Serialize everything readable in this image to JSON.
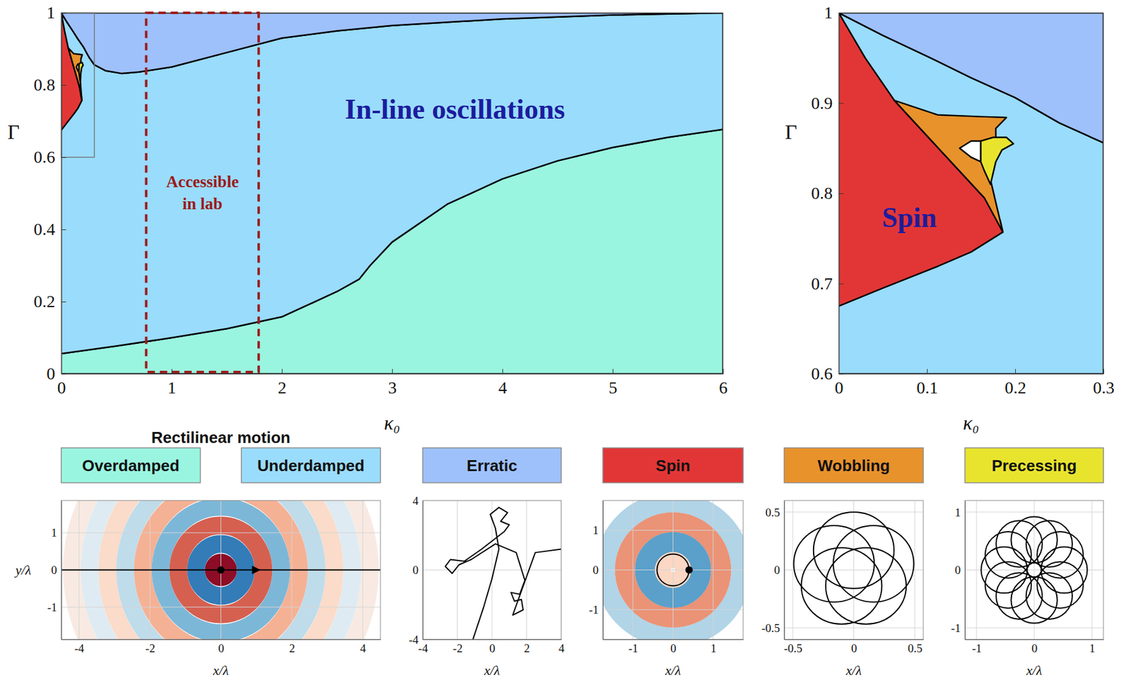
{
  "chart_data": [
    {
      "type": "regime_map",
      "x_label": "κ₀",
      "y_label": "Γ",
      "xlim": [
        0,
        6
      ],
      "ylim": [
        0,
        1
      ],
      "xticks": [
        0,
        1,
        2,
        3,
        4,
        5,
        6
      ],
      "yticks": [
        0,
        0.2,
        0.4,
        0.6,
        0.8,
        1
      ],
      "legend": "bottom",
      "series": [
        {
          "name": "Overdamped",
          "color": "#9af5e0",
          "x": [
            0,
            0.5,
            1,
            1.5,
            2,
            2.5,
            2.7,
            2.8,
            3,
            3.5,
            4,
            4.5,
            5,
            5.5,
            6,
            6,
            0
          ],
          "values": [
            0.056,
            0.077,
            0.1,
            0.125,
            0.158,
            0.228,
            0.262,
            0.3,
            0.365,
            0.47,
            0.54,
            0.59,
            0.627,
            0.655,
            0.677,
            0,
            0
          ]
        },
        {
          "name": "Underdamped",
          "color": "#9adcfc",
          "x": [
            0,
            0.5,
            1,
            1.5,
            2,
            2.5,
            2.7,
            2.8,
            3,
            3.5,
            4,
            4.5,
            5,
            5.5,
            6,
            6,
            5,
            4,
            3,
            2.5,
            2,
            1.5,
            1,
            0.7,
            0.55,
            0.4,
            0.3,
            0.25,
            0.2,
            0.15,
            0.1,
            0.05,
            0
          ],
          "values": [
            0.056,
            0.077,
            0.1,
            0.125,
            0.158,
            0.228,
            0.262,
            0.3,
            0.365,
            0.47,
            0.54,
            0.59,
            0.627,
            0.655,
            0.677,
            1,
            0.994,
            0.983,
            0.965,
            0.95,
            0.93,
            0.89,
            0.85,
            0.836,
            0.832,
            0.84,
            0.856,
            0.878,
            0.906,
            0.928,
            0.952,
            0.975,
            1
          ]
        },
        {
          "name": "Erratic",
          "color": "#9ec1fc",
          "x": [
            0,
            0.05,
            0.1,
            0.15,
            0.2,
            0.25,
            0.3,
            0.4,
            0.55,
            0.7,
            1,
            1.5,
            2,
            2.5,
            3,
            4,
            5,
            6
          ],
          "values": [
            1,
            0.975,
            0.952,
            0.928,
            0.906,
            0.878,
            0.856,
            0.84,
            0.832,
            0.836,
            0.85,
            0.89,
            0.93,
            0.95,
            0.965,
            0.983,
            0.994,
            1
          ]
        },
        {
          "name": "Spin",
          "color": "#e23636",
          "x": [
            0,
            0.03,
            0.063,
            0.112,
            0.165,
            0.183,
            0.186,
            0.15,
            0.112,
            0.05,
            0
          ],
          "values": [
            1,
            0.95,
            0.903,
            0.851,
            0.795,
            0.77,
            0.757,
            0.735,
            0.719,
            0.695,
            0.675
          ]
        },
        {
          "name": "Wobbling",
          "color": "#e8922c",
          "x": [
            0.063,
            0.112,
            0.161,
            0.19,
            0.178,
            0.178,
            0.172,
            0.178,
            0.186,
            0.165,
            0.112
          ],
          "values": [
            0.903,
            0.887,
            0.885,
            0.884,
            0.872,
            0.84,
            0.815,
            0.79,
            0.757,
            0.795,
            0.851
          ]
        },
        {
          "color": "#ffffff",
          "x": [
            0.137,
            0.15,
            0.161,
            0.161,
            0.15
          ],
          "values": [
            0.85,
            0.858,
            0.858,
            0.835,
            0.84
          ]
        },
        {
          "name": "Precessing",
          "color": "#e8e42e",
          "x": [
            0.161,
            0.175,
            0.19,
            0.198,
            0.185,
            0.178,
            0.172,
            0.165,
            0.161
          ],
          "values": [
            0.858,
            0.862,
            0.862,
            0.855,
            0.848,
            0.835,
            0.81,
            0.825,
            0.835
          ]
        }
      ],
      "boxes": [
        {
          "x": [
            0.77,
            1.79
          ],
          "y": [
            0.005,
            1
          ],
          "line_style": "dashed",
          "color": "#9b1c1c",
          "text": [
            "Accessible",
            "in lab"
          ]
        },
        {
          "x": [
            0,
            0.3
          ],
          "y": [
            0.6,
            1
          ],
          "line_style": "solid",
          "color": "#777777"
        }
      ],
      "annotations": [
        {
          "text": "In-line oscillations",
          "x": 3.57,
          "y": 0.733,
          "color": "#1c1c9e"
        }
      ]
    },
    {
      "type": "regime_map",
      "x_label": "κ₀",
      "y_label": "Γ",
      "xlim": [
        0,
        0.3
      ],
      "ylim": [
        0.6,
        1
      ],
      "xticks": [
        0,
        0.1,
        0.2,
        0.3
      ],
      "yticks": [
        0.6,
        0.7,
        0.8,
        0.9,
        1
      ],
      "series": [
        {
          "color": "#9adcfc",
          "x": [
            0,
            0.3,
            0.3,
            0.25,
            0.2,
            0.15,
            0.1,
            0.05,
            0
          ],
          "values": [
            0.6,
            0.6,
            0.856,
            0.878,
            0.906,
            0.928,
            0.952,
            0.975,
            1
          ]
        },
        {
          "color": "#9ec1fc",
          "x": [
            0,
            0.05,
            0.1,
            0.15,
            0.2,
            0.25,
            0.3,
            0.3
          ],
          "values": [
            1,
            0.975,
            0.952,
            0.928,
            0.906,
            0.878,
            0.856,
            1
          ]
        },
        {
          "color": "#e23636",
          "x": [
            0,
            0.03,
            0.063,
            0.112,
            0.165,
            0.183,
            0.186,
            0.15,
            0.112,
            0.05,
            0
          ],
          "values": [
            1,
            0.95,
            0.903,
            0.851,
            0.795,
            0.77,
            0.757,
            0.735,
            0.719,
            0.695,
            0.675
          ]
        },
        {
          "color": "#e8922c",
          "x": [
            0.063,
            0.112,
            0.161,
            0.19,
            0.178,
            0.178,
            0.172,
            0.178,
            0.186,
            0.165,
            0.112
          ],
          "values": [
            0.903,
            0.887,
            0.885,
            0.884,
            0.872,
            0.84,
            0.815,
            0.79,
            0.757,
            0.795,
            0.851
          ]
        },
        {
          "color": "#ffffff",
          "x": [
            0.137,
            0.15,
            0.161,
            0.161,
            0.15
          ],
          "values": [
            0.85,
            0.858,
            0.858,
            0.835,
            0.84
          ]
        },
        {
          "color": "#e8e42e",
          "x": [
            0.161,
            0.175,
            0.19,
            0.198,
            0.185,
            0.178,
            0.172,
            0.165,
            0.161
          ],
          "values": [
            0.858,
            0.862,
            0.862,
            0.855,
            0.848,
            0.835,
            0.81,
            0.825,
            0.835
          ]
        }
      ],
      "annotations": [
        {
          "text": "Spin",
          "x": 0.08,
          "y": 0.773,
          "color": "#1c1c9e"
        }
      ]
    },
    {
      "type": "trajectory",
      "title": "Rectilinear motion",
      "x_label": "x/λ",
      "y_label": "y/λ",
      "xlim": [
        -4.5,
        4.5
      ],
      "ylim": [
        -1.87,
        1.87
      ],
      "xticks": [
        -4,
        -2,
        0,
        2,
        4
      ],
      "yticks": [
        -1,
        0,
        1
      ],
      "grid": true,
      "field": {
        "cx": 0,
        "cy": 0,
        "r": [
          0.2,
          0.7,
          1.2,
          1.7,
          2.2,
          2.7,
          3.2,
          3.7,
          4.2
        ],
        "amplitude": [
          0.9,
          -0.7,
          0.6,
          -0.45,
          0.35,
          -0.25,
          0.18,
          -0.12,
          0.08
        ]
      },
      "series": [
        {
          "color": "#000000",
          "marker": "arrow",
          "x": [
            -4.5,
            1,
            4.5
          ],
          "values": [
            0,
            0,
            0
          ]
        }
      ],
      "particle": [
        0,
        0
      ]
    },
    {
      "type": "trajectory",
      "x_label": "x/λ",
      "xlim": [
        -4,
        4
      ],
      "ylim": [
        -4,
        4
      ],
      "xticks": [
        -4,
        -2,
        0,
        2,
        4
      ],
      "yticks": [
        -4,
        0,
        4
      ],
      "grid": true,
      "series": [
        {
          "color": "#000000",
          "x": [
            -1.1,
            -0.5,
            0,
            0.4,
            0.2,
            -0.1,
            0.4,
            0.9,
            0.5,
            1.0,
            0.7,
            -0.6,
            -1.6,
            -2.4,
            -2.7,
            -2.3,
            -1.9,
            -1.2,
            0.2,
            1.4,
            1.9,
            1.6,
            1.1,
            1.3,
            1.7,
            1.8,
            1.2,
            2.5,
            4
          ],
          "values": [
            -4,
            -2.2,
            -0.5,
            1.2,
            2.4,
            3.2,
            3.6,
            3.3,
            2.8,
            2.6,
            2.2,
            1.2,
            0.5,
            0.6,
            0.2,
            -0.2,
            0.3,
            0.6,
            1.5,
            1.0,
            -0.6,
            -1.4,
            -1.3,
            -1.8,
            -1.7,
            -2.3,
            -2.6,
            1.0,
            1.2
          ]
        }
      ]
    },
    {
      "type": "trajectory",
      "x_label": "x/λ",
      "xlim": [
        -1.75,
        1.75
      ],
      "ylim": [
        -1.75,
        1.75
      ],
      "xticks": [
        -1,
        0,
        1
      ],
      "yticks": [
        -1,
        0,
        1
      ],
      "grid": true,
      "field": {
        "cx": 0,
        "cy": 0,
        "r": [
          0.2,
          0.7,
          1.2,
          1.7
        ],
        "amplitude": [
          0.2,
          -0.55,
          0.45,
          -0.3
        ]
      },
      "loops": {
        "cx": [
          0
        ],
        "cy": [
          0
        ],
        "r": [
          0.4
        ]
      },
      "particle": [
        0.4,
        0
      ]
    },
    {
      "type": "trajectory",
      "x_label": "x/λ",
      "xlim": [
        -0.57,
        0.57
      ],
      "ylim": [
        -0.6,
        0.6
      ],
      "xticks": [
        -0.5,
        0,
        0.5
      ],
      "yticks": [
        -0.5,
        0,
        0.5
      ],
      "grid": true,
      "loops": {
        "cx": [
          0,
          -0.162,
          -0.1,
          0.1,
          0.162
        ],
        "cy": [
          0.17,
          0.053,
          -0.138,
          -0.138,
          0.053
        ],
        "r": [
          0.33,
          0.33,
          0.33,
          0.33,
          0.33
        ]
      }
    },
    {
      "type": "trajectory",
      "x_label": "x/λ",
      "xlim": [
        -1.2,
        1.2
      ],
      "ylim": [
        -1.2,
        1.2
      ],
      "xticks": [
        -1,
        0,
        1
      ],
      "yticks": [
        -1,
        0,
        1
      ],
      "grid": true,
      "loops": {
        "cx": [
          0.52,
          0.45,
          0.26,
          0,
          -0.26,
          -0.45,
          -0.52,
          -0.45,
          -0.26,
          0,
          0.26,
          0.45
        ],
        "cy": [
          0,
          0.26,
          0.45,
          0.52,
          0.45,
          0.26,
          0,
          -0.26,
          -0.45,
          -0.52,
          -0.45,
          -0.26
        ],
        "r": [
          0.4,
          0.4,
          0.4,
          0.4,
          0.4,
          0.4,
          0.4,
          0.4,
          0.4,
          0.4,
          0.4,
          0.4
        ]
      }
    }
  ]
}
